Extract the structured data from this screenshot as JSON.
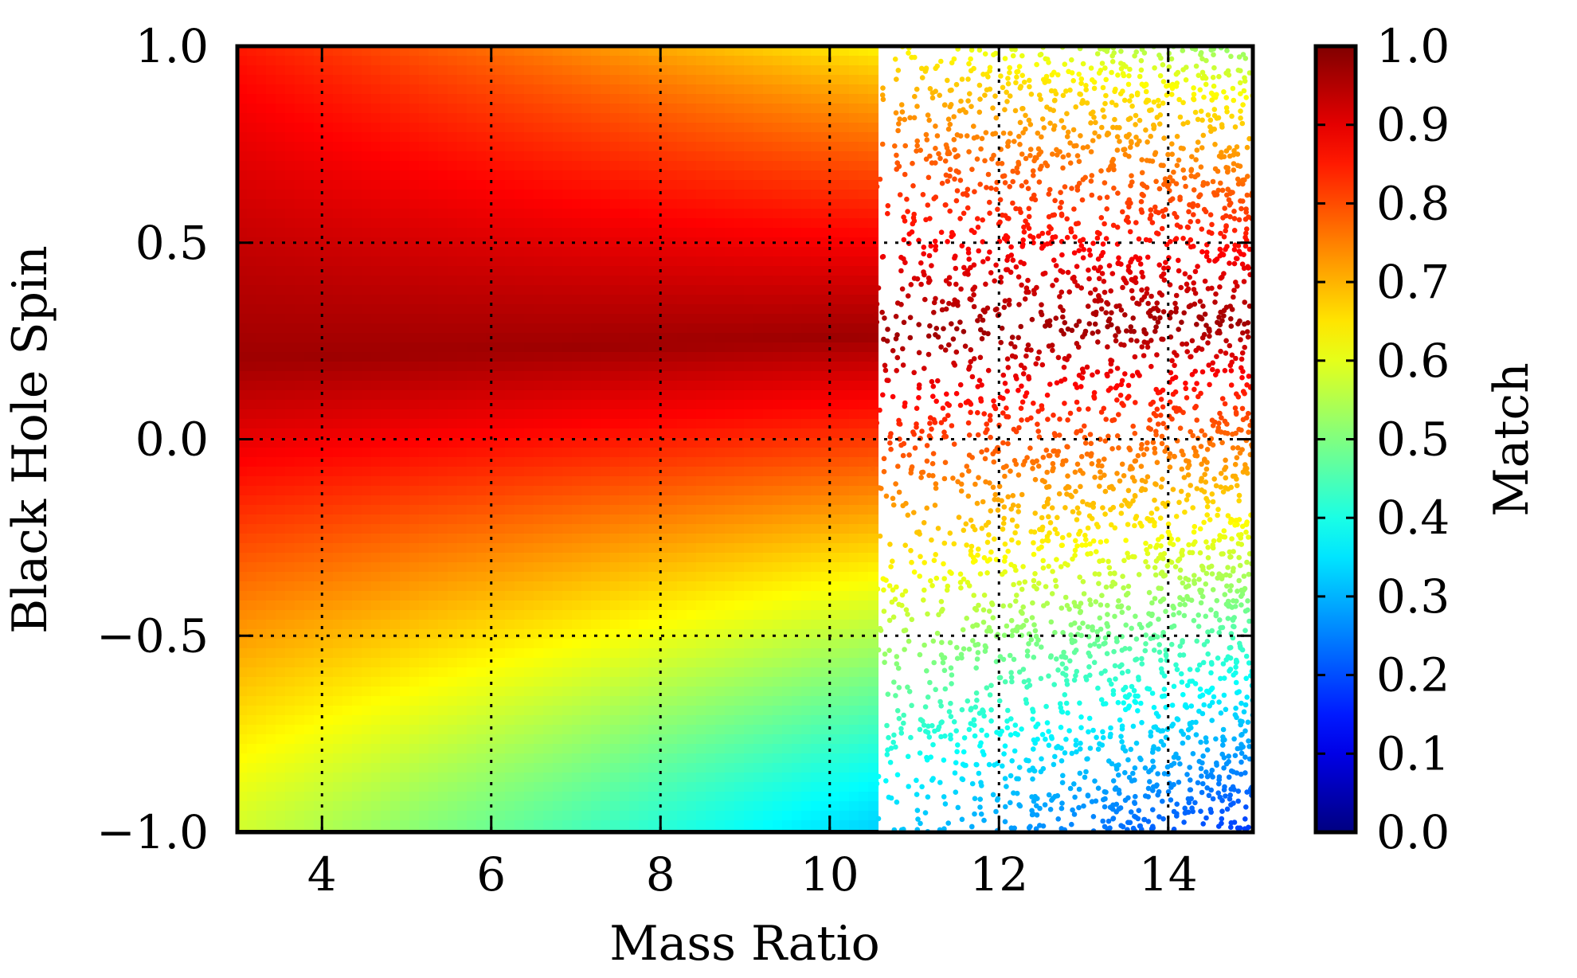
{
  "chart_data": {
    "type": "scatter",
    "title": "",
    "xlabel": "Mass Ratio",
    "ylabel": "Black Hole Spin",
    "xlim": [
      3,
      15
    ],
    "ylim": [
      -1.0,
      1.0
    ],
    "x_ticks": [
      4,
      6,
      8,
      10,
      12,
      14
    ],
    "x_tick_labels": [
      "4",
      "6",
      "8",
      "10",
      "12",
      "14"
    ],
    "y_ticks": [
      -1.0,
      -0.5,
      0.0,
      0.5,
      1.0
    ],
    "y_tick_labels": [
      "−1.0",
      "−0.5",
      "0.0",
      "0.5",
      "1.0"
    ],
    "grid": "dotted, on major ticks",
    "colorbar": {
      "label": "Match",
      "colormap": "jet",
      "range": [
        0.0,
        1.0
      ],
      "ticks": [
        0.0,
        0.1,
        0.2,
        0.3,
        0.4,
        0.5,
        0.6,
        0.7,
        0.8,
        0.9,
        1.0
      ],
      "tick_labels": [
        "0.0",
        "0.1",
        "0.2",
        "0.3",
        "0.4",
        "0.5",
        "0.6",
        "0.7",
        "0.8",
        "0.9",
        "1.0"
      ]
    },
    "color_field": {
      "description": "match value as a function of mass ratio q and spin chi",
      "peak_spin_at_low_q": 0.2,
      "peak_spin_at_high_q": 0.3,
      "peak_match": 0.97,
      "match_at_q3_spin_minus1": 0.58,
      "match_at_q15_spin_minus1": 0.18,
      "match_at_q3_spin_plus1": 0.85,
      "match_at_q15_spin_plus1": 0.5
    },
    "samples": {
      "dense_region_q_max": 10.5,
      "sparse_region_q_range": [
        10.5,
        15
      ],
      "dot_color_encoding": "Match"
    }
  }
}
